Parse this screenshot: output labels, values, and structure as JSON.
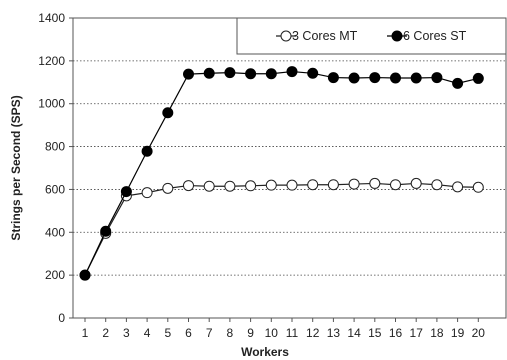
{
  "chart_data": {
    "type": "line",
    "title": "",
    "xlabel": "Workers",
    "ylabel": "Strings per Second (SPS)",
    "x": [
      1,
      2,
      3,
      4,
      5,
      6,
      7,
      8,
      9,
      10,
      11,
      12,
      13,
      14,
      15,
      16,
      17,
      18,
      19,
      20
    ],
    "xticks": [
      "1",
      "2",
      "3",
      "4",
      "5",
      "6",
      "7",
      "8",
      "9",
      "10",
      "11",
      "12",
      "13",
      "14",
      "15",
      "16",
      "17",
      "18",
      "19",
      "20"
    ],
    "ylim": [
      0,
      1400
    ],
    "yticks": [
      "0",
      "200",
      "400",
      "600",
      "800",
      "1000",
      "1200",
      "1400"
    ],
    "grid": true,
    "legend_position": "top-right",
    "series": [
      {
        "name": "3 Cores MT",
        "marker": "open-circle",
        "color": "#222222",
        "values": [
          200,
          395,
          570,
          585,
          605,
          618,
          615,
          615,
          617,
          620,
          620,
          622,
          622,
          625,
          628,
          622,
          628,
          622,
          612,
          610
        ]
      },
      {
        "name": "6 Cores ST",
        "marker": "filled-circle",
        "color": "#000000",
        "values": [
          200,
          405,
          590,
          778,
          958,
          1138,
          1142,
          1145,
          1140,
          1140,
          1150,
          1142,
          1122,
          1120,
          1122,
          1120,
          1120,
          1122,
          1095,
          1118
        ]
      }
    ]
  }
}
